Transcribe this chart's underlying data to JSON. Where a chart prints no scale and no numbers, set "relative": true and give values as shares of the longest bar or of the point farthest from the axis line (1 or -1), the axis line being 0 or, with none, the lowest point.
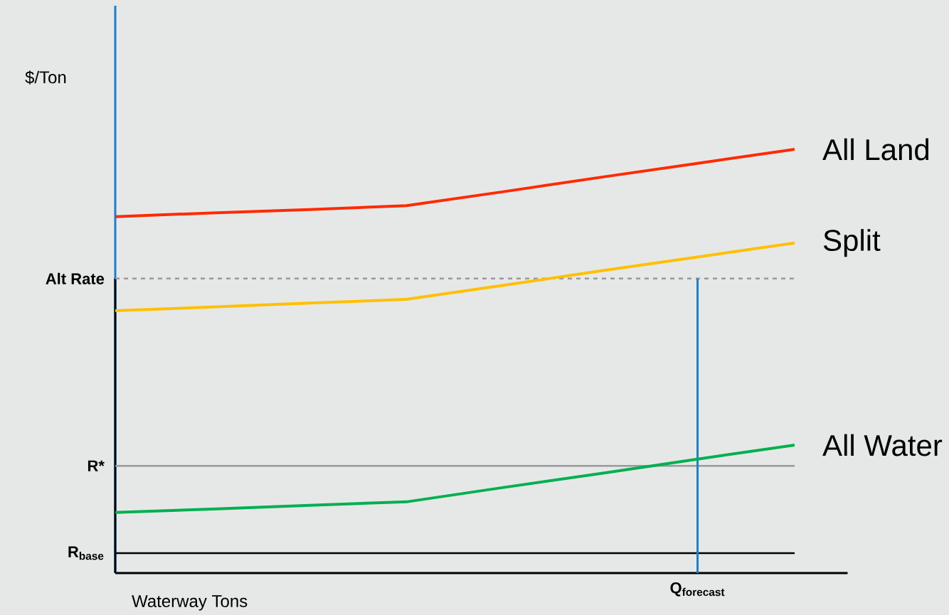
{
  "chart_data": {
    "type": "line",
    "relative": true,
    "xlabel": "Waterway Tons",
    "ylabel": "$/Ton",
    "line_style": "solid",
    "categories": [
      null,
      null,
      null,
      null,
      null,
      null,
      null,
      null
    ],
    "series": [
      {
        "name": "All Land",
        "color": "#ff2a00",
        "values": [
          0.841,
          0.85,
          0.858,
          0.867,
          0.9,
          0.934,
          0.967,
          1.0
        ]
      },
      {
        "name": "Split",
        "color": "#ffc000",
        "values": [
          0.619,
          0.628,
          0.637,
          0.646,
          0.679,
          0.713,
          0.746,
          0.779
        ]
      },
      {
        "name": "All Water",
        "color": "#00b050",
        "values": [
          0.143,
          0.151,
          0.16,
          0.168,
          0.202,
          0.235,
          0.269,
          0.302
        ]
      }
    ],
    "ref_lines": [
      {
        "axis": "y",
        "value": 0.695,
        "label": "Alt Rate",
        "color": "#999999",
        "line_style": "dashed"
      },
      {
        "axis": "y",
        "value": 0.253,
        "label": "R*",
        "color": "#999999",
        "line_style": "solid"
      },
      {
        "axis": "y",
        "value": 0.047,
        "label": "R$_{base}$",
        "color": "#000000",
        "line_style": "solid"
      }
    ],
    "annotations": [
      "Q$_{forecast}$"
    ]
  }
}
